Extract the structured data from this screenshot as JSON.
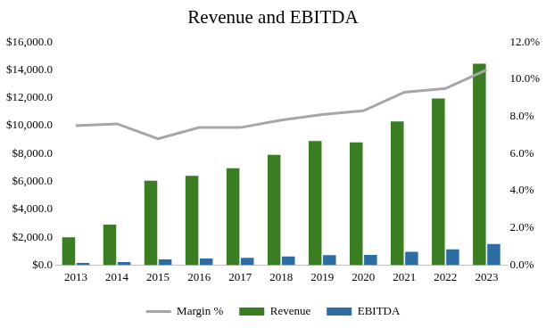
{
  "chart_data": {
    "type": "bar",
    "title": "Revenue and EBITDA",
    "categories": [
      "2013",
      "2014",
      "2015",
      "2016",
      "2017",
      "2018",
      "2019",
      "2020",
      "2021",
      "2022",
      "2023"
    ],
    "series": [
      {
        "name": "Revenue",
        "type": "bar",
        "color": "#3a7d22",
        "values": [
          2000,
          2900,
          6050,
          6400,
          6950,
          7900,
          8900,
          8800,
          10300,
          11950,
          14450
        ]
      },
      {
        "name": "EBITDA",
        "type": "bar",
        "color": "#2e6ca4",
        "values": [
          150,
          220,
          410,
          470,
          515,
          615,
          720,
          730,
          960,
          1135,
          1520
        ]
      },
      {
        "name": "Margin %",
        "type": "line",
        "color": "#a6a6a6",
        "axis": "y2",
        "marker": "none",
        "line_style": "solid",
        "values": [
          7.5,
          7.6,
          6.8,
          7.4,
          7.4,
          7.8,
          8.1,
          8.3,
          9.3,
          9.5,
          10.5
        ]
      }
    ],
    "ylim": [
      0,
      16000
    ],
    "yticks": [
      {
        "value": 0,
        "label": "$0.0"
      },
      {
        "value": 2000,
        "label": "$2,000.0"
      },
      {
        "value": 4000,
        "label": "$4,000.0"
      },
      {
        "value": 6000,
        "label": "$6,000.0"
      },
      {
        "value": 8000,
        "label": "$8,000.0"
      },
      {
        "value": 10000,
        "label": "$10,000.0"
      },
      {
        "value": 12000,
        "label": "$12,000.0"
      },
      {
        "value": 14000,
        "label": "$14,000.0"
      },
      {
        "value": 16000,
        "label": "$16,000.0"
      }
    ],
    "y2lim": [
      0,
      12
    ],
    "y2ticks": [
      {
        "value": 0,
        "label": "0.0%"
      },
      {
        "value": 2,
        "label": "2.0%"
      },
      {
        "value": 4,
        "label": "4.0%"
      },
      {
        "value": 6,
        "label": "6.0%"
      },
      {
        "value": 8,
        "label": "8.0%"
      },
      {
        "value": 10,
        "label": "10.0%"
      },
      {
        "value": 12,
        "label": "12.0%"
      }
    ],
    "grid": false,
    "legend": "bottom"
  }
}
